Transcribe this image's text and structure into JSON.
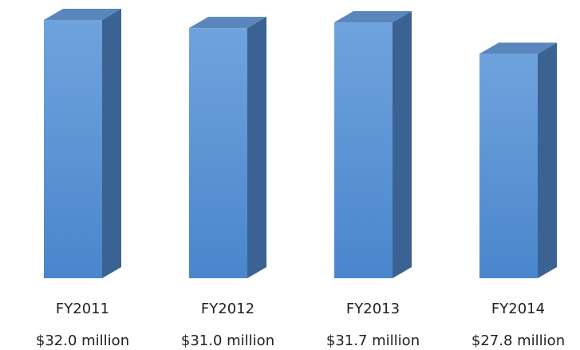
{
  "chart_data": {
    "type": "bar",
    "style": "3d-column",
    "categories": [
      "FY2011",
      "FY2012",
      "FY2013",
      "FY2014"
    ],
    "values": [
      32.0,
      31.0,
      31.7,
      27.8
    ],
    "value_labels": [
      "$32.0 million",
      "$31.0 million",
      "$31.7 million",
      "$27.8 million"
    ],
    "unit": "million",
    "title": "",
    "xlabel": "",
    "ylabel": "",
    "ylim": [
      0,
      32.0
    ],
    "grid": false,
    "legend": "none",
    "colors": {
      "front_top": "#6fa3dd",
      "front_bottom": "#4a86cc",
      "side": "#3a6293",
      "top": "#5a86bb"
    }
  }
}
